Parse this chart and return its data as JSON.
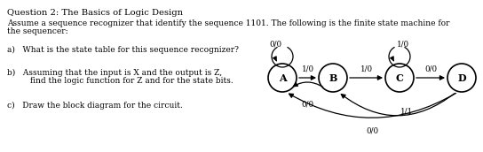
{
  "title": "Question 2: The Basics of Logic Design",
  "subtitle1": "Assume a sequence recognizer that identify the sequence 1101. The following is the finite state machine for",
  "subtitle2": "the sequencer:",
  "q_a": "a)   What is the state table for this sequence recognizer?",
  "q_b1": "b)   Assuming that the input is X and the output is Z,",
  "q_b2": "         find the logic function for Z and for the state bits.",
  "q_c": "c)   Draw the block diagram for the circuit.",
  "states": [
    "A",
    "B",
    "C",
    "D"
  ],
  "bg_color": "#ffffff",
  "text_color": "#000000"
}
